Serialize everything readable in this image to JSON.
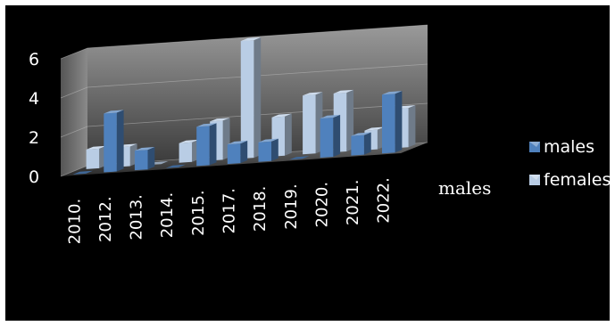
{
  "chart_data": {
    "type": "bar",
    "style": "3d-clustered-column",
    "categories": [
      "2010.",
      "2012.",
      "2013.",
      "2014.",
      "2015.",
      "2017.",
      "2018.",
      "2019.",
      "2020.",
      "2021.",
      "2022."
    ],
    "series": [
      {
        "name": "males",
        "values": [
          0,
          3,
          1,
          0,
          2,
          1,
          1,
          0,
          2,
          1,
          3
        ]
      },
      {
        "name": "females",
        "values": [
          1,
          1,
          0,
          1,
          2,
          6,
          2,
          3,
          3,
          1,
          2
        ]
      }
    ],
    "ylim": [
      0,
      6
    ],
    "yticks": [
      "0",
      "2",
      "4",
      "6"
    ],
    "depth_axis_label": "males",
    "legend_position": "right",
    "grid": true,
    "colors": {
      "background": "#000000",
      "border": "#ffffff",
      "wall": "#7a7a7a",
      "males": "#4f81bd",
      "females": "#b9cde5",
      "text": "#ffffff"
    }
  }
}
